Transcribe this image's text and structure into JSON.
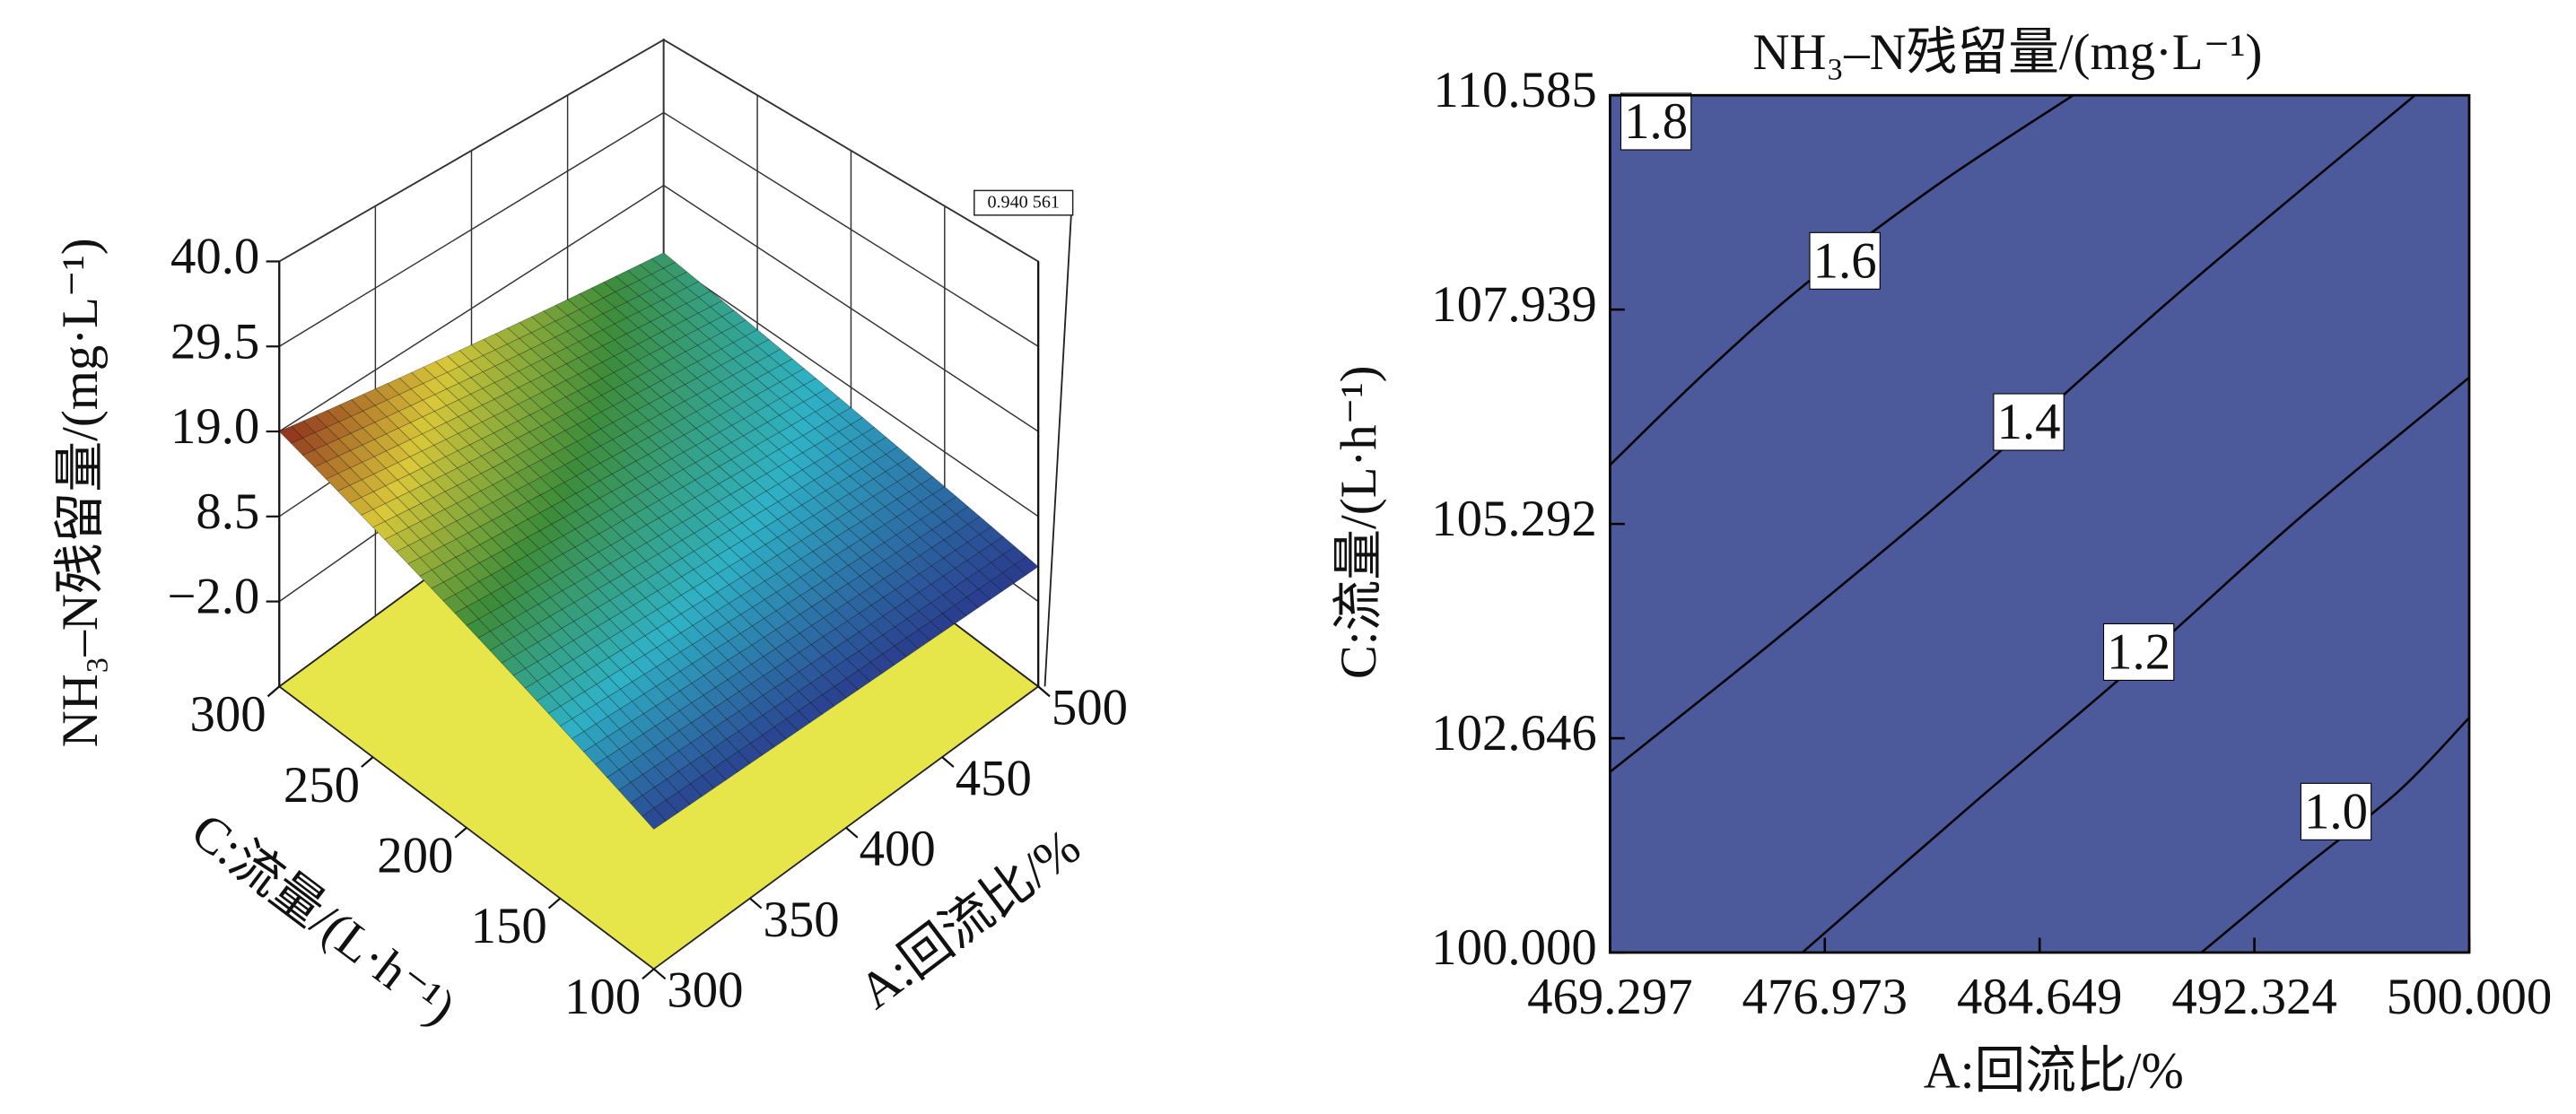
{
  "chart_data": [
    {
      "type": "surface",
      "zlabel": "NH₃–N残留量/(mg·L⁻¹)",
      "xlabel": "A:回流比/%",
      "ylabel": "C:流量/(L·h⁻¹)",
      "x": [
        300,
        350,
        400,
        450,
        500
      ],
      "y": [
        100,
        150,
        200,
        250,
        300
      ],
      "z": [
        [
          2.6,
          2.53,
          2.45,
          2.38,
          2.3
        ],
        [
          6.7,
          6.04,
          5.38,
          4.71,
          4.05
        ],
        [
          10.8,
          9.55,
          8.3,
          7.05,
          5.8
        ],
        [
          14.9,
          13.06,
          11.23,
          9.39,
          7.55
        ],
        [
          19,
          16.58,
          14.15,
          11.73,
          9.3
        ]
      ],
      "xlim": [
        300,
        500
      ],
      "ylim": [
        100,
        300
      ],
      "zlim": [
        -12.5,
        40
      ],
      "xticks": [
        300,
        350,
        400,
        450,
        500
      ],
      "yticks": [
        100,
        150,
        200,
        250,
        300
      ],
      "zticks": [
        {
          "value": 40,
          "label": "40.0"
        },
        29.5,
        {
          "value": 19,
          "label": "19.0"
        },
        8.5,
        {
          "value": -2,
          "label": "−2.0"
        }
      ],
      "floor_color": "#e6e64a",
      "colormap": [
        "#2a3a8c",
        "#2fb2c6",
        "#3d8c3a",
        "#d9c83a",
        "#8a2a1c"
      ],
      "annotation": "0.940 561"
    },
    {
      "type": "contour",
      "title": "NH₃–N残留量/(mg·L⁻¹)",
      "xlabel": "A:回流比/%",
      "ylabel": "C:流量/(L·h⁻¹)",
      "xlim": [
        469.297,
        500
      ],
      "ylim": [
        100,
        110.585
      ],
      "xticks": [
        469.297,
        476.973,
        484.649,
        492.324,
        {
          "value": 500,
          "label": "500.000"
        }
      ],
      "yticks": [
        110.585,
        107.939,
        105.292,
        102.646,
        {
          "value": 100,
          "label": "100.000"
        }
      ],
      "fill_color": "#4c5a9b",
      "levels": [
        {
          "value": 1.8,
          "label": "1.8",
          "label_at": [
            470.94,
            110.2
          ]
        },
        {
          "value": 1.6,
          "label": "1.6",
          "label_at": [
            477.69,
            108.48
          ],
          "x": [
            469.297,
            472.82,
            476.34,
            481.04,
            485.85
          ],
          "y": [
            106.02,
            107.2,
            108.27,
            109.49,
            110.585
          ]
        },
        {
          "value": 1.4,
          "label": "1.4",
          "label_at": [
            484.26,
            106.49
          ],
          "x": [
            469.297,
            475.17,
            482.21,
            489.84,
            498.06
          ],
          "y": [
            102.23,
            103.85,
            105.88,
            108.21,
            110.585
          ]
        },
        {
          "value": 1.2,
          "label": "1.2",
          "label_at": [
            488.19,
            103.65
          ],
          "x": [
            476.17,
            482.21,
            488.08,
            493.95,
            500
          ],
          "y": [
            100,
            101.82,
            103.55,
            105.37,
            107.1
          ]
        },
        {
          "value": 1,
          "label": "1.0",
          "label_at": [
            495.24,
            101.68
          ],
          "x": [
            490.43,
            493.95,
            497.47,
            500
          ],
          "y": [
            100,
            101.01,
            101.99,
            102.9
          ]
        }
      ]
    }
  ]
}
